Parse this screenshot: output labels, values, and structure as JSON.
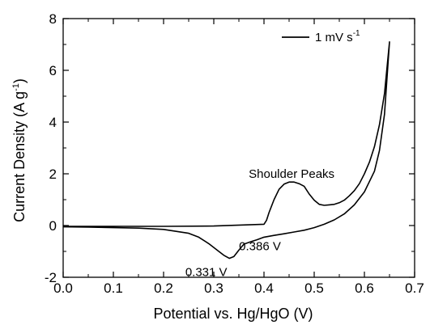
{
  "chart_data": {
    "type": "line",
    "xlabel": "Potential vs. Hg/HgO (V)",
    "ylabel": "Current Density (A g",
    "ylabel_sup": "-1",
    "ylabel_end": ")",
    "xlim": [
      0.0,
      0.7
    ],
    "ylim": [
      -2,
      8
    ],
    "x_ticks": [
      0.0,
      0.1,
      0.2,
      0.3,
      0.4,
      0.5,
      0.6,
      0.7
    ],
    "x_tick_labels": [
      "0.0",
      "0.1",
      "0.2",
      "0.3",
      "0.4",
      "0.5",
      "0.6",
      "0.7"
    ],
    "y_ticks": [
      -2,
      0,
      2,
      4,
      6,
      8
    ],
    "y_tick_labels": [
      "-2",
      "0",
      "2",
      "4",
      "6",
      "8"
    ],
    "grid": false,
    "legend": {
      "position": "top-right",
      "label": "1 mV s",
      "label_sup": "-1"
    },
    "series": [
      {
        "name": "1 mV s-1",
        "color": "#000000",
        "x": [
          0.0,
          0.05,
          0.1,
          0.15,
          0.2,
          0.25,
          0.27,
          0.29,
          0.31,
          0.32,
          0.331,
          0.34,
          0.35,
          0.36,
          0.375,
          0.386,
          0.4,
          0.42,
          0.44,
          0.46,
          0.48,
          0.5,
          0.52,
          0.54,
          0.56,
          0.58,
          0.6,
          0.62,
          0.63,
          0.64,
          0.65,
          0.65,
          0.64,
          0.63,
          0.62,
          0.61,
          0.6,
          0.59,
          0.58,
          0.57,
          0.56,
          0.55,
          0.54,
          0.53,
          0.52,
          0.51,
          0.5,
          0.49,
          0.48,
          0.47,
          0.46,
          0.45,
          0.44,
          0.43,
          0.42,
          0.41,
          0.405,
          0.4,
          0.3,
          0.2,
          0.1,
          0.0
        ],
        "y": [
          -0.05,
          -0.06,
          -0.08,
          -0.1,
          -0.15,
          -0.3,
          -0.45,
          -0.7,
          -1.0,
          -1.15,
          -1.27,
          -1.2,
          -0.95,
          -0.72,
          -0.62,
          -0.55,
          -0.45,
          -0.38,
          -0.32,
          -0.25,
          -0.18,
          -0.08,
          0.05,
          0.22,
          0.45,
          0.8,
          1.3,
          2.1,
          2.9,
          4.3,
          7.1,
          7.1,
          5.1,
          3.9,
          3.05,
          2.45,
          2.0,
          1.62,
          1.35,
          1.15,
          0.98,
          0.88,
          0.82,
          0.8,
          0.78,
          0.82,
          0.98,
          1.22,
          1.52,
          1.62,
          1.68,
          1.68,
          1.6,
          1.4,
          1.0,
          0.5,
          0.2,
          0.05,
          -0.02,
          -0.03,
          -0.03,
          -0.03
        ]
      }
    ],
    "annotations": [
      {
        "text": "Shoulder Peaks",
        "x": 0.455,
        "y": 1.85
      },
      {
        "text": "0.386 V",
        "x": 0.392,
        "y": -0.95
      },
      {
        "text": "0.331 V",
        "x": 0.285,
        "y": -1.95
      }
    ]
  }
}
